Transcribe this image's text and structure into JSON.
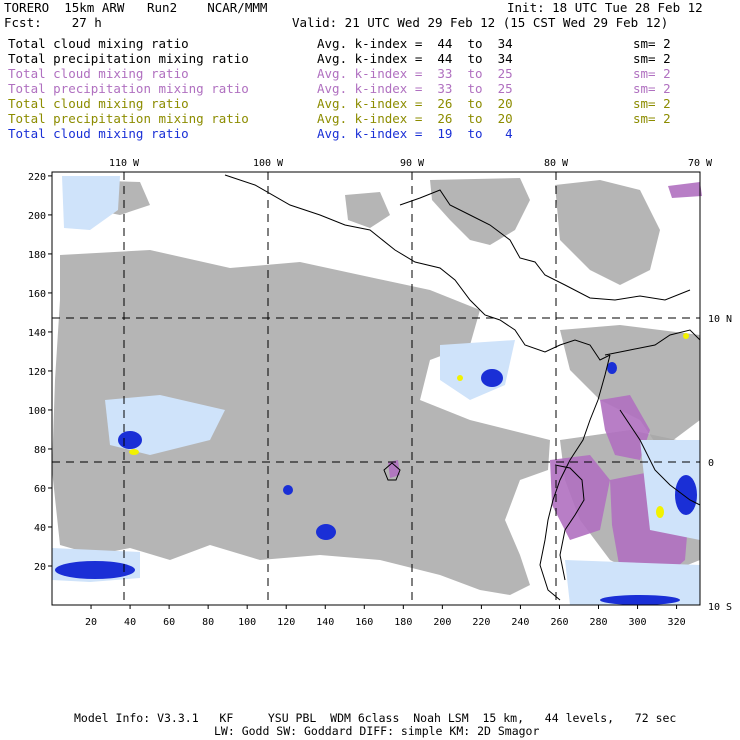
{
  "header": {
    "model_line": "TORERO  15km ARW   Run2    NCAR/MMM",
    "init_line": "Init: 18 UTC Tue 28 Feb 12",
    "fcst_line": "Fcst:    27 h",
    "valid_line": "Valid: 21 UTC Wed 29 Feb 12 (15 CST Wed 29 Feb 12)"
  },
  "legend": [
    {
      "field": "Total cloud mixing ratio",
      "kindex": "Avg. k-index =  44  to  34",
      "sm": "sm= 2",
      "color": "#000000"
    },
    {
      "field": "Total precipitation mixing ratio",
      "kindex": "Avg. k-index =  44  to  34",
      "sm": "sm= 2",
      "color": "#000000"
    },
    {
      "field": "Total cloud mixing ratio",
      "kindex": "Avg. k-index =  33  to  25",
      "sm": "sm= 2",
      "color": "#b070c0"
    },
    {
      "field": "Total precipitation mixing ratio",
      "kindex": "Avg. k-index =  33  to  25",
      "sm": "sm= 2",
      "color": "#b070c0"
    },
    {
      "field": "Total cloud mixing ratio",
      "kindex": "Avg. k-index =  26  to  20",
      "sm": "sm= 2",
      "color": "#8c8c00"
    },
    {
      "field": "Total precipitation mixing ratio",
      "kindex": "Avg. k-index =  26  to  20",
      "sm": "sm= 2",
      "color": "#8c8c00"
    },
    {
      "field": "Total cloud mixing ratio",
      "kindex": "Avg. k-index =  19  to   4",
      "sm": "",
      "color": "#1a2fd6"
    }
  ],
  "map": {
    "lon_labels": [
      "110 W",
      "100 W",
      "90 W",
      "80 W",
      "70 W"
    ],
    "lat_labels": [
      "10 N",
      "0",
      "10 S"
    ],
    "x_ticks": [
      "20",
      "40",
      "60",
      "80",
      "100",
      "120",
      "140",
      "160",
      "180",
      "200",
      "220",
      "240",
      "260",
      "280",
      "300",
      "320"
    ],
    "y_ticks": [
      "20",
      "40",
      "60",
      "80",
      "100",
      "120",
      "140",
      "160",
      "180",
      "200",
      "220"
    ],
    "colors": {
      "cloud_gray": "#a8a8a8",
      "purple": "#b070c0",
      "light_blue": "#cfe3fa",
      "mid_blue": "#7fa9ee",
      "deep_blue": "#1a2fd6",
      "yellow": "#f2f200"
    }
  },
  "footer": {
    "line1": "Model Info: V3.3.1   KF     YSU PBL  WDM 6class  Noah LSM  15 km,   44 levels,   72 sec",
    "line2": "LW: Godd SW: Goddard DIFF: simple KM: 2D Smagor"
  }
}
